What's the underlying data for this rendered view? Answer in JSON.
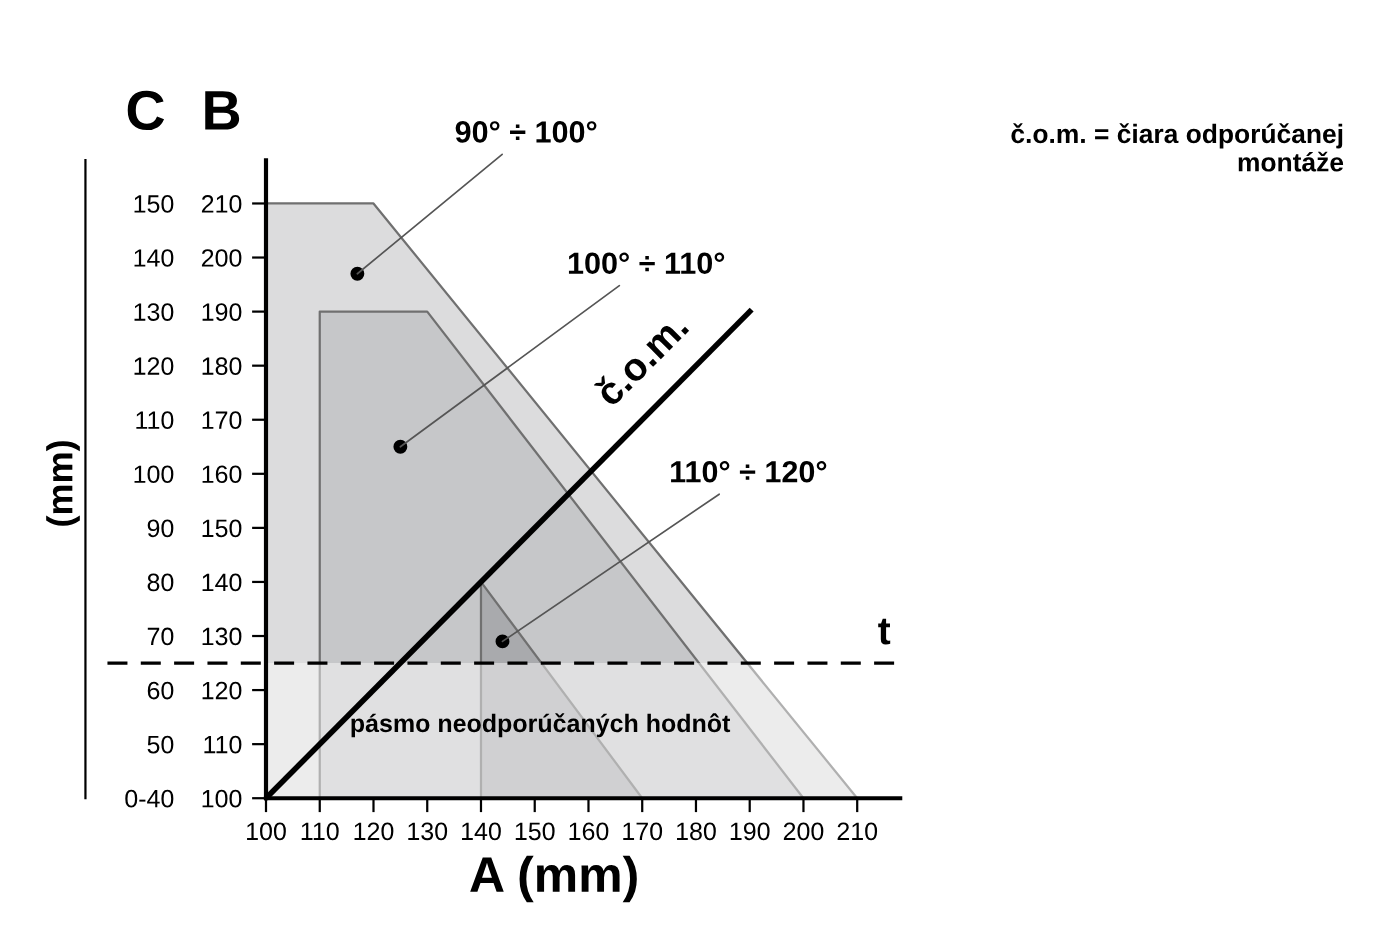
{
  "chart_data": {
    "type": "area",
    "xlabel": "A (mm)",
    "ylabel": "B",
    "y2label": "C",
    "series": [
      {
        "x": [
          100,
          120,
          210
        ],
        "values": [
          210,
          210,
          100
        ],
        "color": "#dcdcdd"
      },
      {
        "x": [
          110,
          130,
          200
        ],
        "values": [
          190,
          190,
          100
        ],
        "color": "#c6c7c9"
      },
      {
        "x": [
          140,
          140,
          170
        ],
        "values": [
          100,
          140,
          100
        ],
        "color": "#a9aaad"
      },
      {
        "type": "line",
        "name": "č.o.m.",
        "x": [
          100,
          190
        ],
        "values": [
          100,
          190
        ],
        "color": "#000000"
      }
    ],
    "xlim": [
      100,
      218
    ],
    "ylim": [
      100,
      218
    ],
    "xticks": [
      100,
      110,
      120,
      130,
      140,
      150,
      160,
      170,
      180,
      190,
      200,
      210
    ],
    "yticks": [
      100,
      110,
      120,
      130,
      140,
      150,
      160,
      170,
      180,
      190,
      200,
      210
    ],
    "y2lim": [
      40,
      158
    ],
    "y2ticks": [
      {
        "value": 40,
        "label": "0-40"
      },
      50,
      60,
      70,
      80,
      90,
      100,
      110,
      120,
      130,
      140,
      150
    ],
    "ref_lines": [
      {
        "axis": "y",
        "value": 125,
        "label": "t",
        "color": "#000000",
        "line_style": "dashed"
      }
    ],
    "bands": [
      {
        "axis": "y",
        "from": 100,
        "to": 125,
        "label": "pásmo neodporúčaných hodnôt",
        "color": "#ffffff"
      }
    ],
    "annotations": [
      {
        "text": "90° ÷ 100°",
        "x": 117,
        "y": 197
      },
      {
        "text": "100° ÷ 110°",
        "x": 125,
        "y": 165
      },
      {
        "text": "110° ÷ 120°",
        "x": 144,
        "y": 129
      },
      "(mm)",
      "č.o.m. = čiara odporúčanej\nmontáže"
    ],
    "grid": false
  }
}
